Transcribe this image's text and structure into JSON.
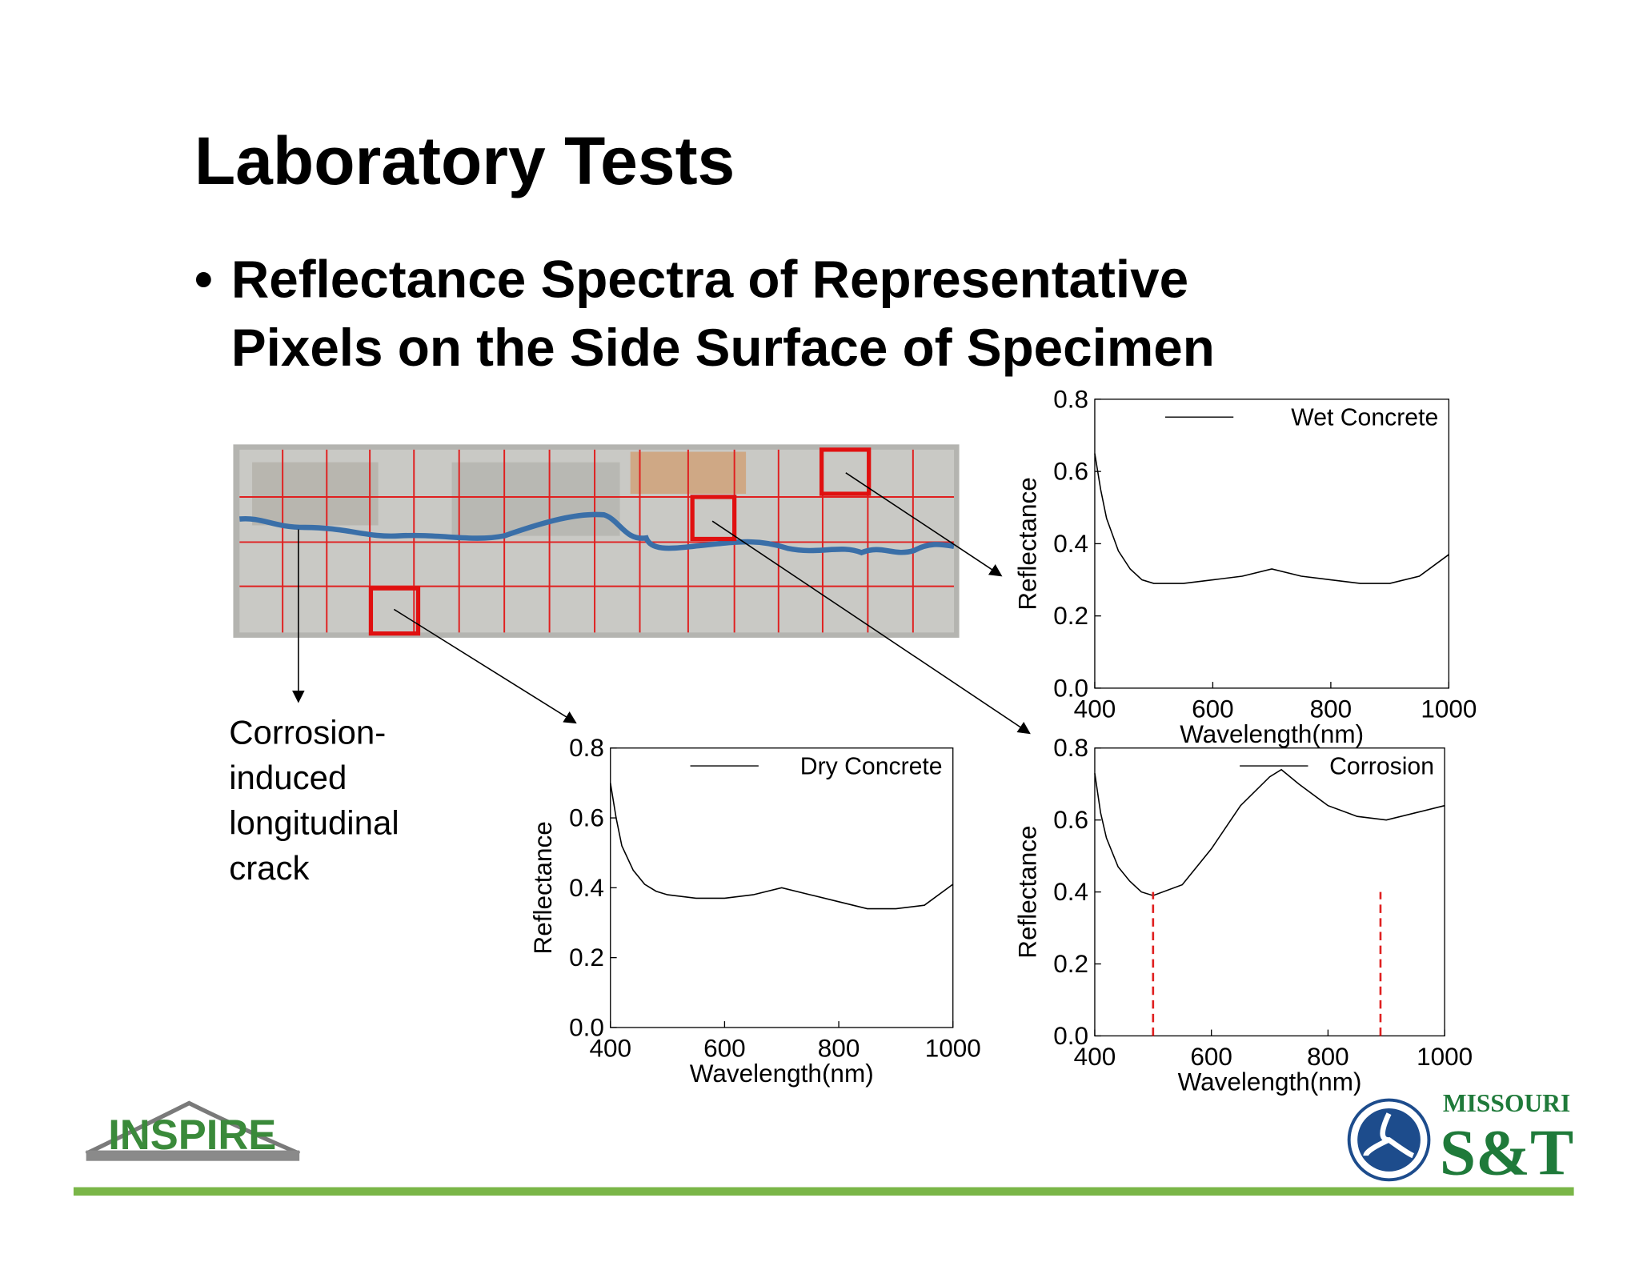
{
  "title": "Laboratory Tests",
  "bullet": [
    "Reflectance Spectra of Representative",
    "Pixels on the Side Surface of Specimen"
  ],
  "annotation": [
    "Corrosion-",
    "induced",
    "longitudinal",
    "crack"
  ],
  "logos": {
    "left": "INSPIRE",
    "right_top": "MISSOURI",
    "right_bottom": "S&T"
  },
  "chart_data": [
    {
      "type": "line",
      "xlabel": "Wavelength(nm)",
      "ylabel": "Reflectance",
      "xlim": [
        400,
        1000
      ],
      "ylim": [
        0,
        0.8
      ],
      "xticks": [
        400,
        600,
        800,
        1000
      ],
      "yticks": [
        {
          "value": 0,
          "label": "0.0"
        },
        0.2,
        0.4,
        0.6,
        0.8
      ],
      "legend": "upper right",
      "x": [
        400,
        410,
        420,
        440,
        460,
        480,
        500,
        550,
        600,
        650,
        700,
        750,
        800,
        850,
        900,
        950,
        1000
      ],
      "series": [
        {
          "name": "Wet Concrete",
          "color": "#000000",
          "values": [
            0.65,
            0.55,
            0.47,
            0.38,
            0.33,
            0.3,
            0.29,
            0.29,
            0.3,
            0.31,
            0.33,
            0.31,
            0.3,
            0.29,
            0.29,
            0.31,
            0.37
          ]
        }
      ]
    },
    {
      "type": "line",
      "xlabel": "Wavelength(nm)",
      "ylabel": "Reflectance",
      "xlim": [
        400,
        1000
      ],
      "ylim": [
        0,
        0.8
      ],
      "xticks": [
        400,
        600,
        800,
        1000
      ],
      "yticks": [
        {
          "value": 0,
          "label": "0.0"
        },
        0.2,
        0.4,
        0.6,
        0.8
      ],
      "legend": "upper right",
      "x": [
        400,
        410,
        420,
        440,
        460,
        480,
        500,
        550,
        600,
        650,
        700,
        750,
        800,
        850,
        900,
        950,
        1000
      ],
      "series": [
        {
          "name": "Dry Concrete",
          "color": "#000000",
          "values": [
            0.7,
            0.6,
            0.52,
            0.45,
            0.41,
            0.39,
            0.38,
            0.37,
            0.37,
            0.38,
            0.4,
            0.38,
            0.36,
            0.34,
            0.34,
            0.35,
            0.41
          ]
        }
      ]
    },
    {
      "type": "line",
      "xlabel": "Wavelength(nm)",
      "ylabel": "Reflectance",
      "xlim": [
        400,
        1000
      ],
      "ylim": [
        0,
        0.8
      ],
      "xticks": [
        400,
        600,
        800,
        1000
      ],
      "yticks": [
        {
          "value": 0,
          "label": "0.0"
        },
        0.2,
        0.4,
        0.6,
        0.8
      ],
      "legend": "upper right",
      "x": [
        400,
        410,
        420,
        440,
        460,
        480,
        500,
        550,
        600,
        650,
        700,
        720,
        750,
        800,
        850,
        900,
        950,
        1000
      ],
      "series": [
        {
          "name": "Corrosion",
          "color": "#000000",
          "values": [
            0.73,
            0.62,
            0.55,
            0.47,
            0.43,
            0.4,
            0.39,
            0.42,
            0.52,
            0.64,
            0.72,
            0.74,
            0.7,
            0.64,
            0.61,
            0.6,
            0.62,
            0.64
          ]
        }
      ],
      "vlines": [
        500,
        890
      ],
      "vline_color": "#e02020"
    }
  ]
}
